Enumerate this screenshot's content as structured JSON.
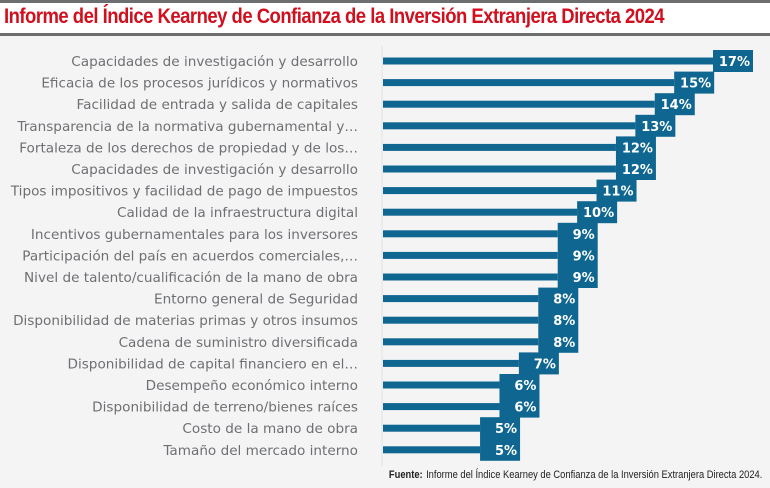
{
  "header": {
    "title": "Informe del Índice Kearney de Confianza de la Inversión Extranjera Directa 2024"
  },
  "footer": {
    "source_label": "Fuente:",
    "source_text": "Informe del Índice Kearney de Confianza de la Inversión Extranjera Directa 2024."
  },
  "colors": {
    "bar": "#0f6791",
    "title": "#d0101e",
    "label": "#6e6f72"
  },
  "chart_data": {
    "type": "bar",
    "orientation": "horizontal",
    "title": "Informe del Índice Kearney de Confianza de la Inversión Extranjera Directa 2024",
    "xlabel": "",
    "ylabel": "",
    "xlim": [
      0,
      17
    ],
    "grid": false,
    "legend": "none",
    "unit": "%",
    "categories": [
      "Capacidades de investigación y desarrollo",
      "Eficacia de los procesos jurídicos y normativos",
      "Facilidad de entrada y salida de capitales",
      "Transparencia de la normativa gubernamental y…",
      "Fortaleza de los derechos de propiedad y de los…",
      "Capacidades de investigación y desarrollo",
      "Tipos impositivos y facilidad de pago de impuestos",
      "Calidad de la infraestructura digital",
      "Incentivos gubernamentales para los inversores",
      "Participación del país en acuerdos comerciales,…",
      "Nivel de talento/cualificación de la mano de obra",
      "Entorno general de Seguridad",
      "Disponibilidad de materias primas y otros insumos",
      "Cadena de suministro diversificada",
      "Disponibilidad de capital financiero en el…",
      "Desempeño económico interno",
      "Disponibilidad de terreno/bienes raíces",
      "Costo de la mano de obra",
      "Tamaño del mercado interno"
    ],
    "values": [
      17,
      15,
      14,
      13,
      12,
      12,
      11,
      10,
      9,
      9,
      9,
      8,
      8,
      8,
      7,
      6,
      6,
      5,
      5
    ],
    "data_labels": [
      "17%",
      "15%",
      "14%",
      "13%",
      "12%",
      "12%",
      "11%",
      "10%",
      "9%",
      "9%",
      "9%",
      "8%",
      "8%",
      "8%",
      "7%",
      "6%",
      "6%",
      "5%",
      "5%"
    ]
  }
}
